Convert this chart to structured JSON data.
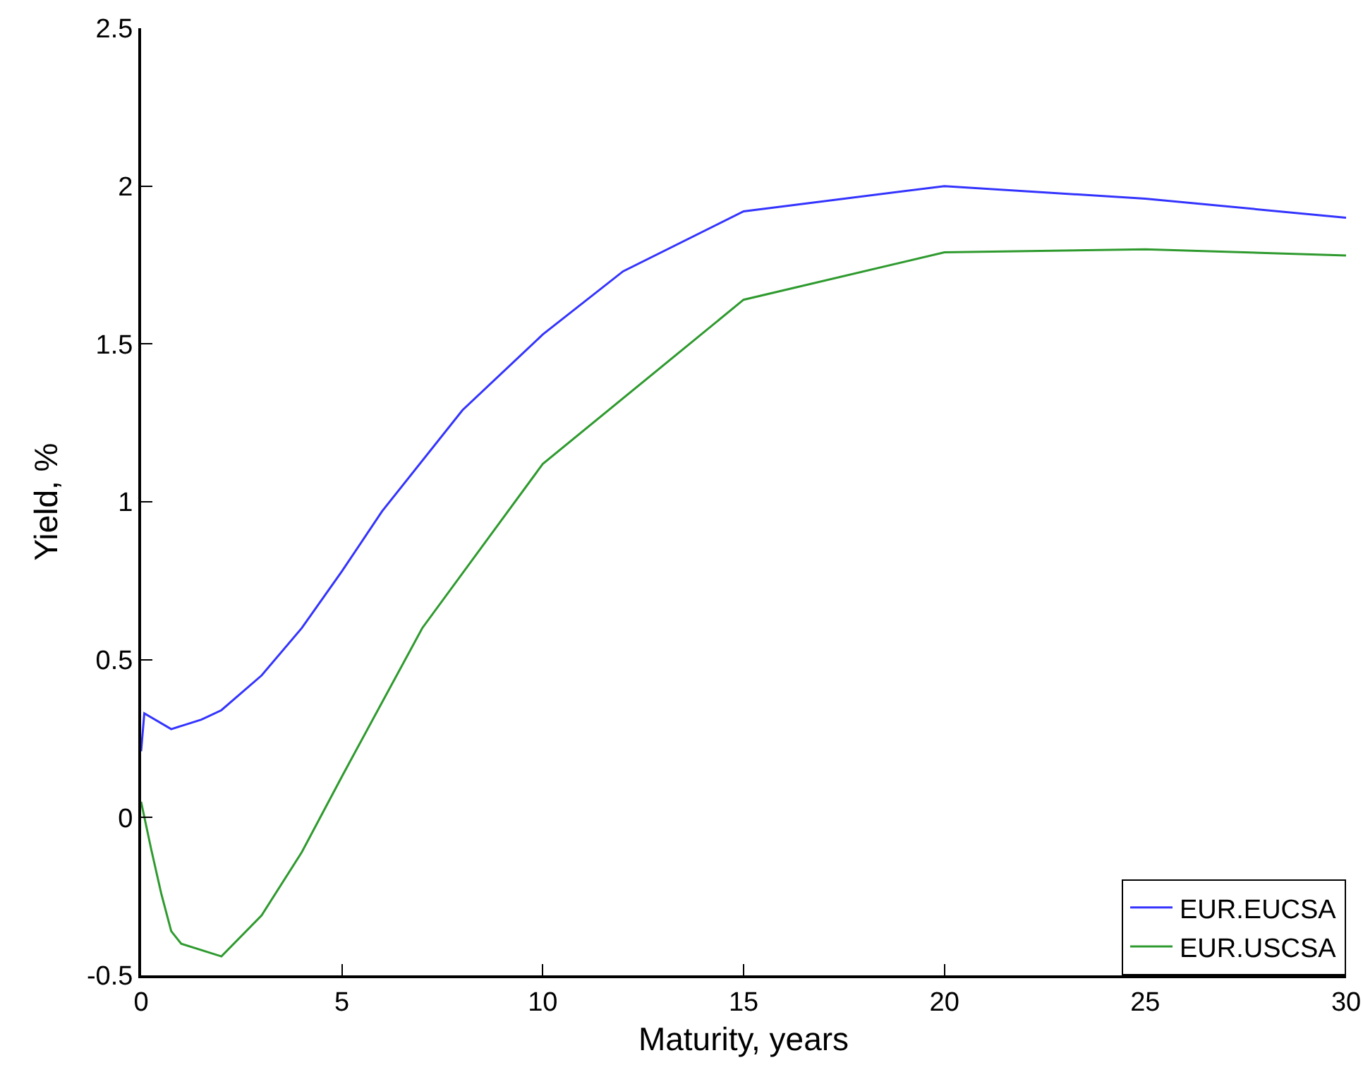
{
  "chart_data": {
    "type": "line",
    "xlabel": "Maturity, years",
    "ylabel": "Yield, %",
    "xlim": [
      0,
      30
    ],
    "xticks": [
      0,
      5,
      10,
      15,
      20,
      25,
      30
    ],
    "ylim": [
      -0.5,
      2.5
    ],
    "yticks": [
      -0.5,
      0,
      0.5,
      1,
      1.5,
      2,
      2.5
    ],
    "grid": false,
    "legend": "bottom right",
    "marker": "none",
    "line_style": "solid",
    "series": [
      {
        "name": "EUR.EUCSA",
        "color": "#3333ff",
        "x": [
          0,
          0.08,
          0.75,
          1,
          1.5,
          2,
          3,
          4,
          5,
          6,
          8,
          10,
          12,
          15,
          20,
          25,
          30
        ],
        "values": [
          0.21,
          0.33,
          0.28,
          0.29,
          0.31,
          0.34,
          0.45,
          0.6,
          0.78,
          0.97,
          1.29,
          1.53,
          1.73,
          1.92,
          2.0,
          1.96,
          1.9
        ]
      },
      {
        "name": "EUR.USCSA",
        "color": "#2e9a2e",
        "x": [
          0,
          0.25,
          0.5,
          0.75,
          1,
          2,
          3,
          4,
          5,
          7,
          10,
          15,
          20,
          25,
          30
        ],
        "values": [
          0.05,
          -0.1,
          -0.24,
          -0.36,
          -0.4,
          -0.44,
          -0.31,
          -0.11,
          0.13,
          0.6,
          1.12,
          1.64,
          1.79,
          1.8,
          1.78
        ]
      }
    ]
  }
}
